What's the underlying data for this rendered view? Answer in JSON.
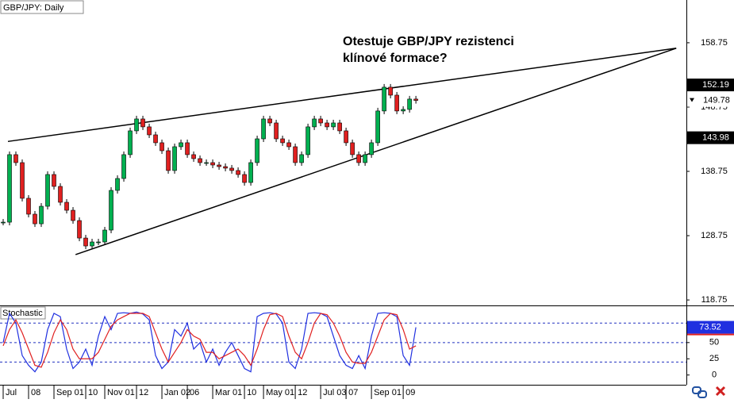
{
  "chart_data": [
    {
      "type": "candlestick",
      "title": "GBP/JPY: Daily",
      "annotation": [
        "Otestuje GBP/JPY rezistenci",
        "klínové formace?"
      ],
      "x": [
        0,
        1,
        2,
        3,
        4,
        5,
        6,
        7,
        8,
        9,
        10,
        11,
        12,
        13,
        14,
        15,
        16,
        17,
        18,
        19,
        20,
        21,
        22,
        23,
        24,
        25,
        26,
        27,
        28,
        29,
        30,
        31,
        32,
        33,
        34,
        35,
        36,
        37,
        38,
        39,
        40,
        41,
        42,
        43,
        44,
        45,
        46,
        47,
        48,
        49,
        50,
        51,
        52,
        53,
        54,
        55,
        56,
        57,
        58,
        59,
        60,
        61,
        62,
        63,
        64,
        65
      ],
      "values": [
        130.85,
        141.35,
        140.11,
        134.56,
        132.09,
        130.6,
        133.32,
        138.26,
        136.41,
        133.94,
        132.7,
        131.1,
        128.38,
        127.15,
        127.77,
        127.77,
        129.62,
        135.79,
        137.64,
        141.35,
        145.05,
        146.9,
        145.67,
        144.43,
        143.2,
        141.96,
        138.88,
        142.58,
        143.2,
        141.35,
        140.73,
        140.11,
        140.11,
        139.74,
        139.49,
        139.25,
        138.88,
        138.26,
        137.02,
        140.11,
        143.81,
        146.9,
        146.28,
        143.81,
        143.2,
        142.58,
        140.11,
        141.35,
        145.67,
        146.9,
        146.28,
        145.67,
        146.28,
        145.05,
        143.2,
        141.35,
        140.11,
        141.35,
        143.2,
        148.14,
        151.84,
        150.6,
        148.14,
        148.38,
        149.99,
        149.78
      ],
      "up_color": "#00b050",
      "down_color": "#e02020",
      "trendlines": [
        {
          "x": [
            0.75,
            106
          ],
          "y": [
            143.4,
            157.9
          ]
        },
        {
          "x": [
            11.4,
            106
          ],
          "y": [
            125.8,
            157.9
          ]
        }
      ],
      "price_labels": [
        152.19,
        143.98
      ],
      "xlim": [
        -0.5,
        107.6
      ],
      "ylim": [
        117.9,
        165.4
      ],
      "yticks": [
        158.75,
        148.75,
        138.75,
        128.75,
        118.75
      ],
      "xticks": [
        {
          "value": 0,
          "label": "Jul"
        },
        {
          "value": 4,
          "label": "08"
        },
        {
          "value": 8,
          "label": "Sep 01"
        },
        {
          "value": 13,
          "label": "10"
        },
        {
          "value": 16,
          "label": "Nov 01"
        },
        {
          "value": 21,
          "label": "12"
        },
        {
          "value": 25,
          "label": "Jan 02"
        },
        {
          "value": 29,
          "label": "06"
        },
        {
          "value": 33,
          "label": "Mar 01"
        },
        {
          "value": 38,
          "label": "10"
        },
        {
          "value": 41,
          "label": "May 01"
        },
        {
          "value": 46,
          "label": "12"
        },
        {
          "value": 50,
          "label": "Jul 03"
        },
        {
          "value": 54,
          "label": "07"
        },
        {
          "value": 58,
          "label": "Sep 01"
        },
        {
          "value": 63,
          "label": "09"
        }
      ]
    },
    {
      "type": "line",
      "title": "Stochastic",
      "x": [
        0,
        1,
        2,
        3,
        4,
        5,
        6,
        7,
        8,
        9,
        10,
        11,
        12,
        13,
        14,
        15,
        16,
        17,
        18,
        19,
        20,
        21,
        22,
        23,
        24,
        25,
        26,
        27,
        28,
        29,
        30,
        31,
        32,
        33,
        34,
        35,
        36,
        37,
        38,
        39,
        40,
        41,
        42,
        43,
        44,
        45,
        46,
        47,
        48,
        49,
        50,
        51,
        52,
        53,
        54,
        55,
        56,
        57,
        58,
        59,
        60,
        61,
        62,
        63,
        64,
        65
      ],
      "series": [
        {
          "color": "#2030e0",
          "values": [
            50,
            95,
            80,
            30,
            15,
            5,
            20,
            70,
            95,
            90,
            40,
            10,
            20,
            40,
            15,
            60,
            90,
            70,
            95,
            96,
            95,
            97,
            94,
            85,
            30,
            10,
            20,
            70,
            60,
            80,
            40,
            50,
            20,
            40,
            15,
            35,
            50,
            30,
            10,
            5,
            90,
            95,
            96,
            94,
            80,
            20,
            10,
            40,
            95,
            96,
            95,
            90,
            60,
            30,
            15,
            10,
            30,
            10,
            60,
            95,
            96,
            95,
            90,
            30,
            15,
            73.52
          ]
        },
        {
          "color": "#e02020",
          "values": [
            45,
            70,
            85,
            65,
            40,
            15,
            12,
            35,
            65,
            85,
            70,
            40,
            25,
            25,
            25,
            35,
            55,
            75,
            85,
            90,
            95,
            95,
            95,
            90,
            65,
            40,
            20,
            35,
            50,
            70,
            60,
            55,
            35,
            35,
            25,
            30,
            35,
            40,
            30,
            15,
            40,
            70,
            93,
            95,
            90,
            60,
            35,
            25,
            50,
            80,
            95,
            93,
            80,
            60,
            35,
            20,
            18,
            18,
            35,
            60,
            85,
            95,
            93,
            70,
            40,
            45
          ]
        }
      ],
      "levels": [
        80,
        50,
        20
      ],
      "xlim": [
        -0.5,
        107.6
      ],
      "ylim": [
        -15,
        106
      ],
      "yticks": [
        50,
        25,
        0
      ]
    }
  ]
}
